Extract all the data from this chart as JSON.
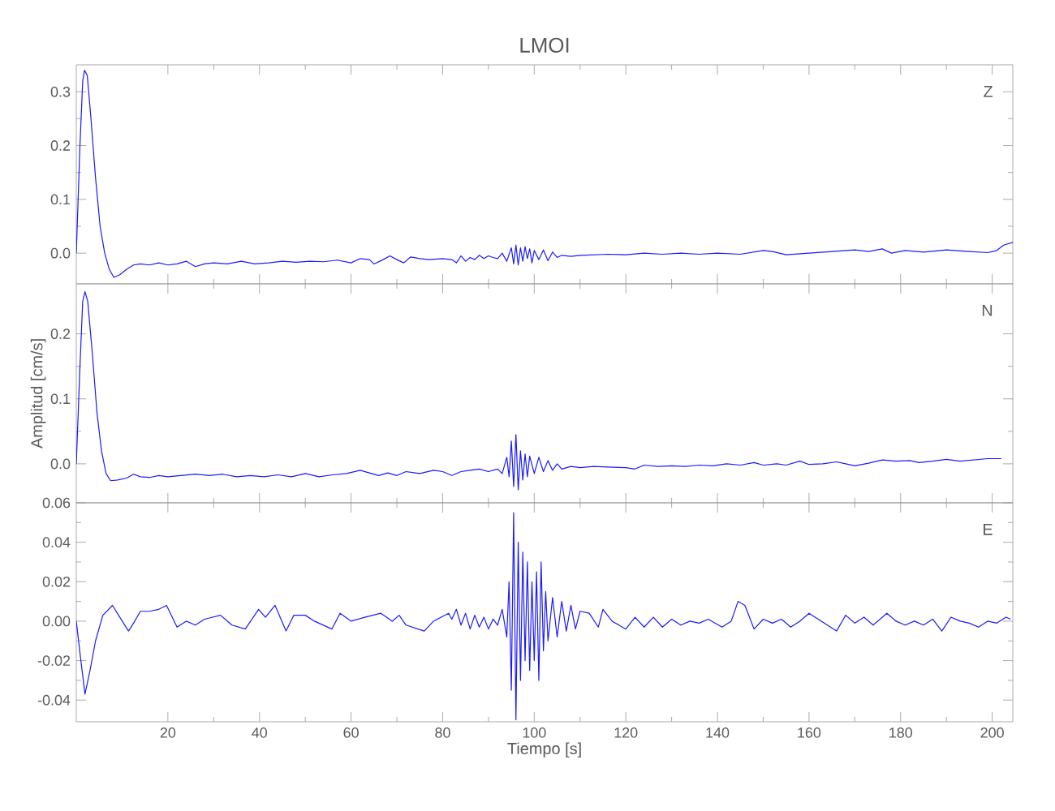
{
  "chart_data": [
    {
      "type": "line",
      "title": "LMOI",
      "annotations": [
        "Z"
      ],
      "tick_labels": "y",
      "color": "#1a1aff",
      "line_style": "solid",
      "xlim": [
        0,
        204.5
      ],
      "ylim": [
        -0.057,
        0.35
      ],
      "xticks": [
        20,
        40,
        60,
        80,
        100,
        120,
        140,
        160,
        180,
        200
      ],
      "yticks": [
        {
          "value": 0,
          "label": "0.0"
        },
        {
          "value": 0.1,
          "label": "0.1"
        },
        {
          "value": 0.2,
          "label": "0.2"
        },
        {
          "value": 0.3,
          "label": "0.3"
        }
      ],
      "x": [
        0,
        0.8,
        1.4,
        1.8,
        2.4,
        3.2,
        4.2,
        5.2,
        6.2,
        7.2,
        8.2,
        9.5,
        11,
        12.5,
        14,
        16,
        18,
        20,
        22,
        24,
        26,
        28,
        30,
        33,
        36,
        39,
        42,
        45,
        48,
        51,
        54,
        57,
        60,
        62,
        64,
        65,
        67,
        68.5,
        70,
        71.5,
        73,
        75,
        77,
        80,
        82,
        83,
        84,
        85,
        86,
        87,
        88,
        89,
        90,
        91,
        92,
        93,
        94,
        95,
        95.5,
        96,
        96.5,
        97,
        97.5,
        98,
        98.5,
        99,
        99.5,
        100,
        101,
        102,
        103,
        104,
        105,
        106,
        108,
        110,
        113,
        116,
        120,
        124,
        128,
        132,
        136,
        140,
        145,
        150,
        152,
        155,
        160,
        165,
        170,
        173,
        176,
        178,
        181,
        185,
        190,
        195,
        199,
        201,
        202.5,
        204.5
      ],
      "values": [
        0,
        0.2,
        0.32,
        0.34,
        0.33,
        0.25,
        0.14,
        0.05,
        0,
        -0.03,
        -0.045,
        -0.04,
        -0.03,
        -0.022,
        -0.02,
        -0.022,
        -0.018,
        -0.022,
        -0.02,
        -0.015,
        -0.025,
        -0.02,
        -0.018,
        -0.02,
        -0.015,
        -0.02,
        -0.018,
        -0.015,
        -0.017,
        -0.015,
        -0.016,
        -0.013,
        -0.018,
        -0.01,
        -0.012,
        -0.02,
        -0.012,
        -0.005,
        -0.012,
        -0.018,
        -0.007,
        -0.01,
        -0.012,
        -0.01,
        -0.012,
        -0.018,
        -0.005,
        -0.015,
        -0.008,
        -0.012,
        -0.004,
        -0.01,
        -0.005,
        -0.008,
        -0.01,
        0,
        -0.015,
        0.01,
        -0.02,
        0.015,
        -0.022,
        0.01,
        -0.015,
        0.012,
        -0.01,
        0.008,
        -0.018,
        0.005,
        -0.012,
        0.006,
        -0.014,
        0.002,
        -0.008,
        -0.004,
        -0.006,
        -0.004,
        -0.003,
        -0.002,
        -0.003,
        0,
        -0.002,
        0,
        -0.002,
        0,
        -0.002,
        0.005,
        0.003,
        -0.003,
        0,
        0.003,
        0.006,
        0.003,
        0.008,
        0,
        0.005,
        0.002,
        0.006,
        0.003,
        0.001,
        0.005,
        0.015,
        0.02
      ]
    },
    {
      "type": "line",
      "ylabel": "Amplitud [cm/s]",
      "annotations": [
        "N"
      ],
      "tick_labels": "y",
      "color": "#1a1aff",
      "line_style": "solid",
      "xlim": [
        0,
        204.5
      ],
      "ylim": [
        -0.06,
        0.277
      ],
      "xticks": [
        20,
        40,
        60,
        80,
        100,
        120,
        140,
        160,
        180,
        200
      ],
      "yticks": [
        {
          "value": 0,
          "label": "0.0"
        },
        {
          "value": 0.1,
          "label": "0.1"
        },
        {
          "value": 0.2,
          "label": "0.2"
        }
      ],
      "x": [
        0,
        0.8,
        1.4,
        1.9,
        2.5,
        3.5,
        4.5,
        5.5,
        6.5,
        7.5,
        9,
        11,
        12.5,
        14,
        16,
        18,
        20,
        23,
        26,
        29,
        32,
        35,
        38,
        41,
        44,
        47,
        50,
        53,
        56,
        59,
        62,
        64,
        66,
        68,
        70,
        72,
        75,
        78,
        80,
        82,
        84,
        86,
        88,
        90,
        92,
        93,
        94,
        94.5,
        95,
        95.5,
        96,
        96.5,
        97,
        97.5,
        98,
        98.5,
        99,
        100,
        101,
        102,
        103,
        104,
        105,
        106,
        108,
        110,
        113,
        116,
        120,
        122,
        124,
        127,
        130,
        133,
        136,
        139,
        142,
        145,
        148,
        150,
        153,
        155,
        158,
        160,
        163,
        166,
        168,
        170,
        173,
        176,
        179,
        182,
        184,
        187,
        190,
        193,
        196,
        199,
        202
      ],
      "values": [
        0,
        0.15,
        0.25,
        0.265,
        0.25,
        0.17,
        0.08,
        0.02,
        -0.015,
        -0.026,
        -0.025,
        -0.022,
        -0.016,
        -0.02,
        -0.021,
        -0.018,
        -0.02,
        -0.018,
        -0.016,
        -0.018,
        -0.016,
        -0.02,
        -0.018,
        -0.02,
        -0.017,
        -0.02,
        -0.015,
        -0.02,
        -0.017,
        -0.015,
        -0.01,
        -0.014,
        -0.018,
        -0.014,
        -0.018,
        -0.012,
        -0.015,
        -0.01,
        -0.012,
        -0.018,
        -0.012,
        -0.01,
        -0.008,
        -0.012,
        -0.008,
        -0.015,
        0.01,
        -0.02,
        0.035,
        -0.035,
        0.045,
        -0.04,
        0.02,
        -0.025,
        0.015,
        -0.02,
        0.012,
        -0.015,
        0.01,
        -0.012,
        0.005,
        -0.01,
        0,
        -0.008,
        -0.004,
        -0.006,
        -0.004,
        -0.005,
        -0.006,
        -0.008,
        -0.002,
        -0.004,
        -0.003,
        -0.004,
        -0.002,
        -0.003,
        0,
        -0.002,
        0.002,
        -0.002,
        0,
        -0.002,
        0.004,
        -0.001,
        0,
        0.003,
        0,
        -0.003,
        0.001,
        0.006,
        0.004,
        0.005,
        0.002,
        0.004,
        0.007,
        0.004,
        0.006,
        0.008,
        0.008
      ]
    },
    {
      "type": "line",
      "xlabel": "Tiempo [s]",
      "annotations": [
        "E"
      ],
      "color": "#1a1aff",
      "line_style": "solid",
      "xlim": [
        0,
        204.5
      ],
      "ylim": [
        -0.051,
        0.06
      ],
      "xticks": [
        20,
        40,
        60,
        80,
        100,
        120,
        140,
        160,
        180,
        200
      ],
      "yticks": [
        {
          "value": -0.04,
          "label": "-0.04"
        },
        {
          "value": -0.02,
          "label": "-0.02"
        },
        {
          "value": 0,
          "label": "0.00"
        },
        {
          "value": 0.02,
          "label": "0.02"
        },
        {
          "value": 0.04,
          "label": "0.04"
        },
        {
          "value": 0.06,
          "label": "0.06"
        }
      ],
      "x": [
        0,
        1,
        1.9,
        3,
        4.2,
        5.8,
        7.9,
        9.5,
        11.4,
        12.5,
        14,
        16,
        18,
        19.7,
        22,
        24,
        26,
        28,
        31.5,
        34,
        36.9,
        39.8,
        41.3,
        43.4,
        45.8,
        47.5,
        50,
        52,
        55.8,
        57.6,
        60,
        63,
        66.5,
        69,
        70.5,
        72,
        76,
        78,
        81.3,
        82,
        83,
        84,
        85,
        86,
        87,
        88,
        89,
        90,
        91,
        92,
        93,
        94,
        94.5,
        95,
        95.5,
        96,
        96.5,
        97,
        97.5,
        98,
        98.5,
        99,
        99.5,
        100,
        100.5,
        101,
        101.5,
        102,
        102.5,
        103,
        104,
        105,
        106,
        107,
        108,
        109,
        110,
        112,
        114,
        115,
        117,
        120,
        122,
        124,
        126,
        128,
        130,
        132,
        134,
        136,
        138,
        141,
        143,
        144.5,
        146,
        148,
        150,
        152,
        154,
        156,
        158,
        160,
        162,
        164,
        166,
        168,
        170,
        172,
        174,
        177,
        179,
        181,
        183,
        185,
        187,
        189,
        191,
        193,
        195,
        197,
        199,
        201,
        203,
        204
      ],
      "values": [
        0,
        -0.02,
        -0.037,
        -0.025,
        -0.01,
        0.003,
        0.008,
        0.002,
        -0.005,
        -0.001,
        0.005,
        0.005,
        0.006,
        0.008,
        -0.003,
        0,
        -0.002,
        0.001,
        0.003,
        -0.002,
        -0.004,
        0.006,
        0.002,
        0.008,
        -0.005,
        0.003,
        0.003,
        0,
        -0.004,
        0.004,
        0,
        0.002,
        0.004,
        0,
        0.003,
        -0.002,
        -0.005,
        0,
        0.004,
        0.001,
        0.006,
        -0.002,
        0.004,
        -0.004,
        0.003,
        -0.003,
        0.002,
        -0.004,
        0.001,
        -0.002,
        0.006,
        -0.008,
        0.02,
        -0.035,
        0.055,
        -0.05,
        0.04,
        -0.03,
        0.035,
        -0.02,
        0.03,
        -0.025,
        0.02,
        -0.02,
        0.025,
        -0.03,
        0.03,
        -0.015,
        0.015,
        -0.01,
        0.012,
        -0.008,
        0.01,
        -0.005,
        0.008,
        -0.004,
        0.005,
        0.004,
        -0.003,
        0.006,
        0,
        -0.004,
        0.002,
        -0.003,
        0.002,
        -0.003,
        0.001,
        -0.002,
        0,
        -0.001,
        0.001,
        -0.003,
        0,
        0.01,
        0.008,
        -0.004,
        0.001,
        -0.001,
        0.001,
        -0.003,
        0,
        0.004,
        0.001,
        -0.002,
        -0.005,
        0.003,
        -0.001,
        0.002,
        -0.002,
        0.004,
        0,
        -0.002,
        0,
        -0.002,
        0.001,
        -0.005,
        0.002,
        0,
        -0.001,
        -0.003,
        0,
        -0.001,
        0.002,
        0.001
      ]
    }
  ]
}
